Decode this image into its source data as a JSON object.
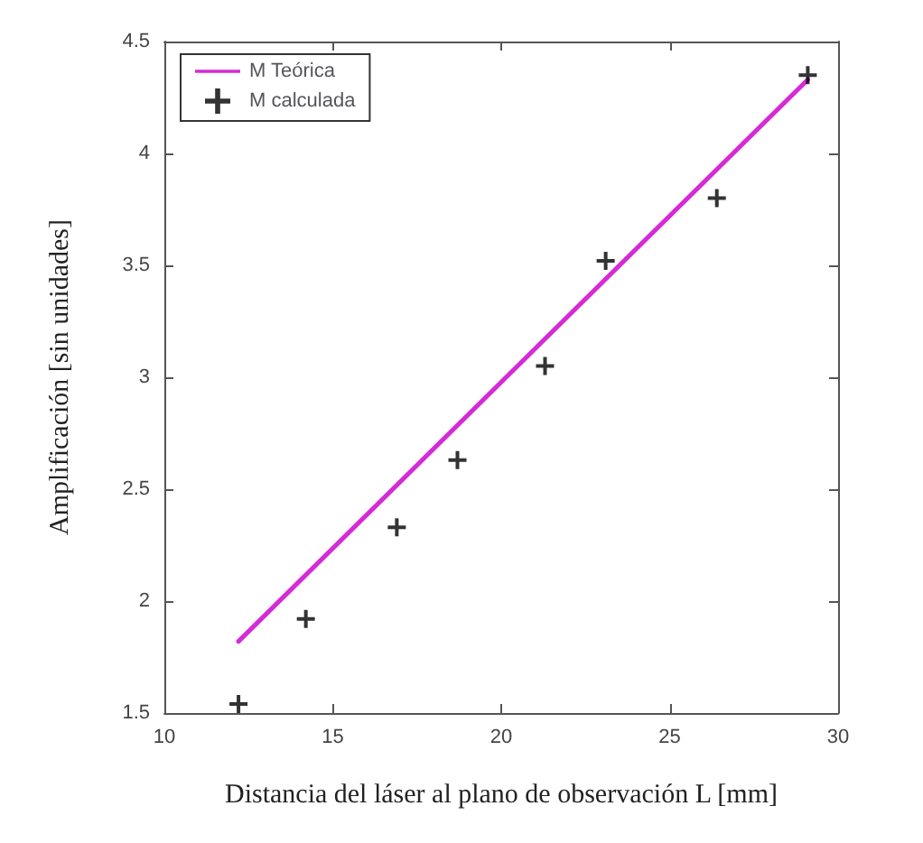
{
  "chart_data": {
    "type": "scatter",
    "xlabel": "Distancia del láser al plano de observación L [mm]",
    "ylabel": "Amplificación [sin unidades]",
    "xlim": [
      10,
      30
    ],
    "xticks": [
      10,
      15,
      20,
      25,
      30
    ],
    "ylim": [
      1.5,
      4.5
    ],
    "yticks": [
      1.5,
      2,
      2.5,
      3,
      3.5,
      4,
      4.5
    ],
    "grid": false,
    "legend": "top left",
    "series": [
      {
        "name": "M Teórica",
        "type": "line",
        "color": "#d62ad6",
        "line_style": "solid",
        "marker": "none",
        "x": [
          12.2,
          29.1
        ],
        "values": [
          1.82,
          4.33
        ]
      },
      {
        "name": "M calculada",
        "color": "#000000",
        "marker": "cross",
        "x": [
          12.2,
          14.2,
          16.9,
          18.7,
          21.3,
          23.1,
          26.4,
          29.1
        ],
        "values": [
          1.54,
          1.92,
          2.33,
          2.63,
          3.05,
          3.52,
          3.8,
          4.35
        ]
      }
    ]
  }
}
